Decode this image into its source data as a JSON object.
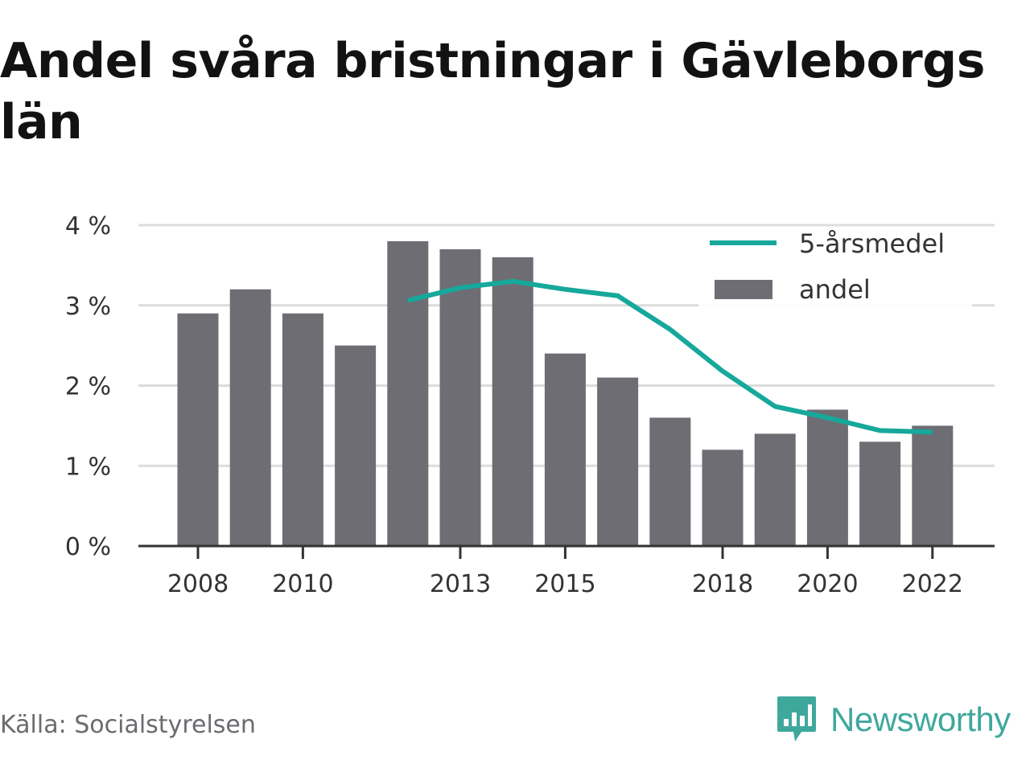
{
  "title": "Andel svåra bristningar i Gävleborgs län",
  "source": "Källa: Socialstyrelsen",
  "brand": {
    "name": "Newsworthy",
    "icon": "newsworthy-logo-icon",
    "color": "#3fa89c"
  },
  "colors": {
    "bar": "#6e6d73",
    "line": "#16a89b",
    "grid": "#dcdcdc",
    "axis": "#333333",
    "text": "#333333"
  },
  "chart_data": {
    "type": "bar",
    "categories": [
      2008,
      2009,
      2010,
      2011,
      2012,
      2013,
      2014,
      2015,
      2016,
      2017,
      2018,
      2019,
      2020,
      2021,
      2022
    ],
    "x_tick_labels": [
      "2008",
      "2010",
      "2013",
      "2015",
      "2018",
      "2020",
      "2022"
    ],
    "y_ticks": [
      0,
      1,
      2,
      3,
      4
    ],
    "y_tick_labels": [
      "0 %",
      "1 %",
      "2 %",
      "3 %",
      "4 %"
    ],
    "ylim": [
      0,
      4
    ],
    "grid": true,
    "legend_position": "top-right",
    "series": [
      {
        "name": "andel",
        "type": "bar",
        "values": [
          2.9,
          3.2,
          2.9,
          2.5,
          3.8,
          3.7,
          3.6,
          2.4,
          2.1,
          1.6,
          1.2,
          1.4,
          1.7,
          1.3,
          1.5
        ]
      },
      {
        "name": "5-årsmedel",
        "type": "line",
        "values": [
          null,
          null,
          null,
          null,
          3.06,
          3.22,
          3.3,
          3.2,
          3.12,
          2.7,
          2.18,
          1.74,
          1.6,
          1.44,
          1.42
        ]
      }
    ]
  }
}
